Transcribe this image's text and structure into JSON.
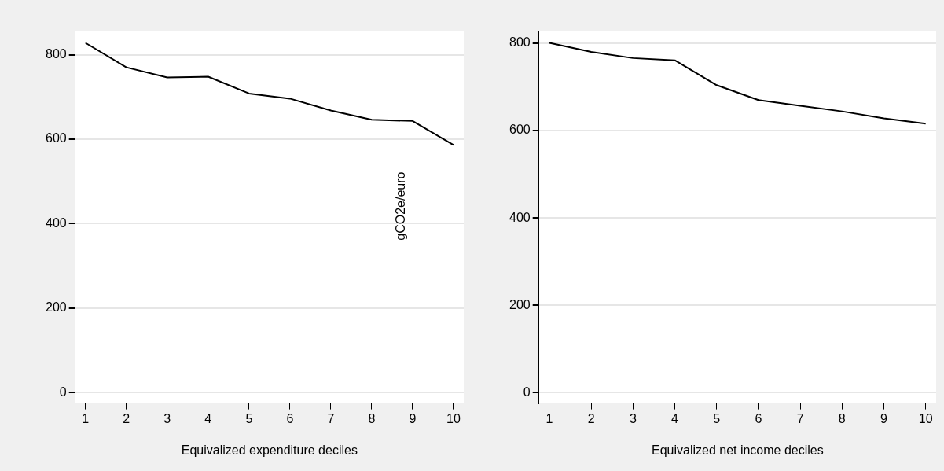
{
  "chart_data": [
    {
      "type": "line",
      "xlabel": "Equivalized expenditure deciles",
      "x": [
        1,
        2,
        3,
        4,
        5,
        6,
        7,
        8,
        9,
        10
      ],
      "xlim": [
        0.75,
        10.25
      ],
      "xticks": [
        1,
        2,
        3,
        4,
        5,
        6,
        7,
        8,
        9,
        10
      ],
      "ylim": [
        -25,
        855
      ],
      "yticks": [
        0,
        200,
        400,
        600,
        800
      ],
      "grid": "y",
      "annotations": [
        "gCO2e/euro"
      ],
      "series": [
        {
          "color": "#000000",
          "values": [
            828,
            770,
            746,
            748,
            708,
            696,
            668,
            646,
            643,
            586
          ]
        }
      ]
    },
    {
      "type": "line",
      "xlabel": "Equivalized net income deciles",
      "x": [
        1,
        2,
        3,
        4,
        5,
        6,
        7,
        8,
        9,
        10
      ],
      "xlim": [
        0.75,
        10.25
      ],
      "xticks": [
        1,
        2,
        3,
        4,
        5,
        6,
        7,
        8,
        9,
        10
      ],
      "ylim": [
        -24,
        827
      ],
      "yticks": [
        0,
        200,
        400,
        600,
        800
      ],
      "grid": "y",
      "series": [
        {
          "color": "#000000",
          "values": [
            801,
            780,
            766,
            761,
            704,
            670,
            657,
            644,
            628,
            616
          ]
        }
      ]
    }
  ]
}
